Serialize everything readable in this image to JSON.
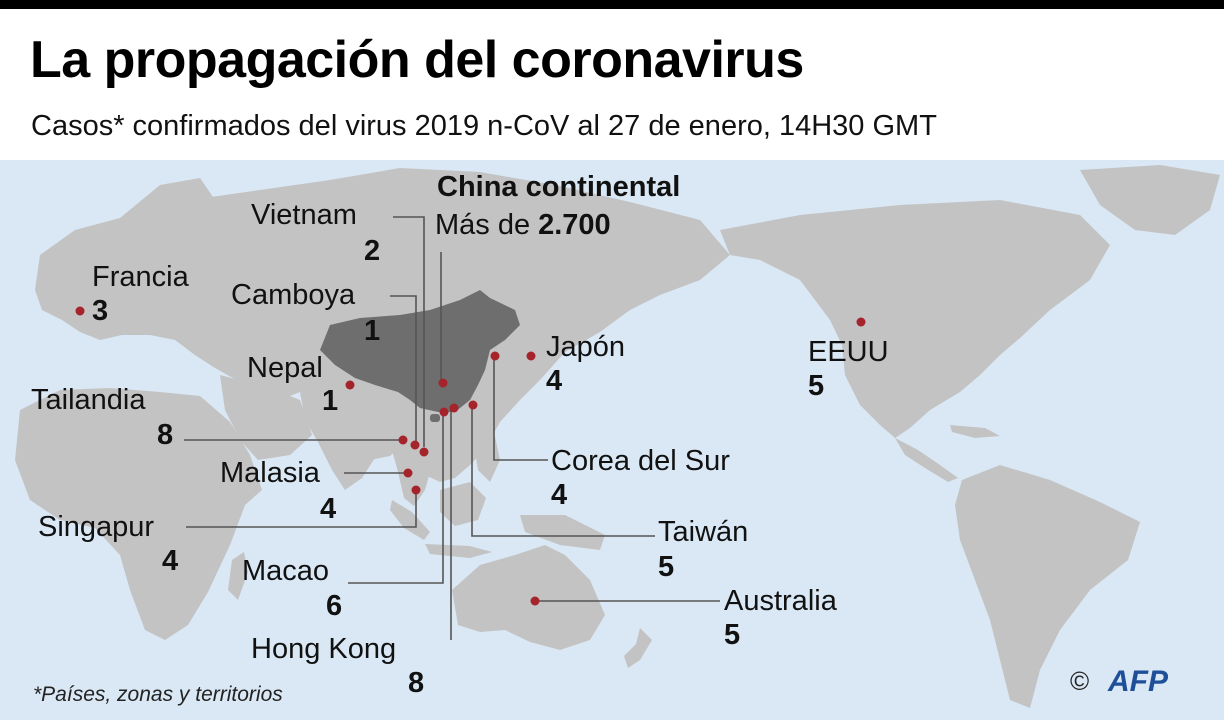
{
  "title": "La propagación del coronavirus",
  "subtitle": "Casos* confirmados del virus 2019 n-CoV al 27 de enero, 14H30 GMT",
  "colors": {
    "ocean": "#d9e8f4",
    "land": "#c3c3c3",
    "china": "#6e6e6e",
    "marker": "#a5232b"
  },
  "places": {
    "china": {
      "name": "China continental",
      "prefix": "Más de",
      "count": "2.700"
    },
    "vietnam": {
      "name": "Vietnam",
      "count": "2"
    },
    "cambodia": {
      "name": "Camboya",
      "count": "1"
    },
    "france": {
      "name": "Francia",
      "count": "3"
    },
    "nepal": {
      "name": "Nepal",
      "count": "1"
    },
    "thailand": {
      "name": "Tailandia",
      "count": "8"
    },
    "malaysia": {
      "name": "Malasia",
      "count": "4"
    },
    "singapore": {
      "name": "Singapur",
      "count": "4"
    },
    "macao": {
      "name": "Macao",
      "count": "6"
    },
    "hong_kong": {
      "name": "Hong Kong",
      "count": "8"
    },
    "japan": {
      "name": "Japón",
      "count": "4"
    },
    "south_korea": {
      "name": "Corea del Sur",
      "count": "4"
    },
    "taiwan": {
      "name": "Taiwán",
      "count": "5"
    },
    "australia": {
      "name": "Australia",
      "count": "5"
    },
    "usa": {
      "name": "EEUU",
      "count": "5"
    }
  },
  "footnote": "*Países, zonas y territorios",
  "credit": {
    "copyright": "©",
    "logo": "AFP"
  }
}
